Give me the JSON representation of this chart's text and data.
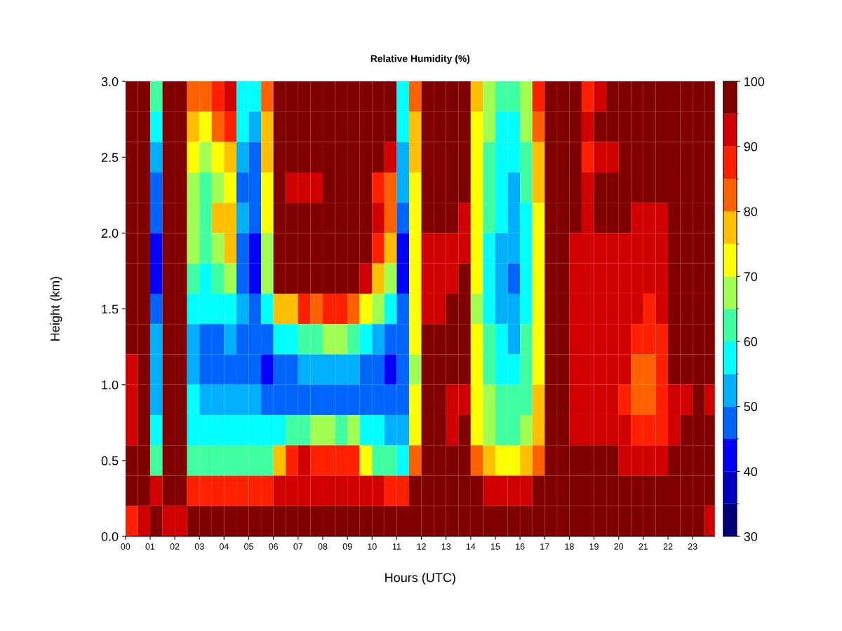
{
  "chart_data": {
    "type": "heatmap",
    "title": "Relative Humidity (%)",
    "xlabel": "Hours (UTC)",
    "ylabel": "Height (km)",
    "x": [
      0.25,
      0.75,
      1.25,
      1.75,
      2.25,
      2.75,
      3.25,
      3.75,
      4.25,
      4.75,
      5.25,
      5.75,
      6.25,
      6.75,
      7.25,
      7.75,
      8.25,
      8.75,
      9.25,
      9.75,
      10.25,
      10.75,
      11.25,
      11.75,
      12.25,
      12.75,
      13.25,
      13.75,
      14.25,
      14.75,
      15.25,
      15.75,
      16.25,
      16.75,
      17.25,
      17.75,
      18.25,
      18.75,
      19.25,
      19.75,
      20.25,
      20.75,
      21.25,
      21.75,
      22.25,
      22.75,
      23.25,
      23.75
    ],
    "cells": [
      [
        97,
        97,
        60,
        97,
        97,
        82,
        80,
        88,
        92,
        58,
        55,
        80,
        97,
        97,
        97,
        97,
        97,
        97,
        97,
        97,
        97,
        97,
        58,
        80,
        97,
        97,
        97,
        97,
        75,
        68,
        62,
        60,
        68,
        85,
        97,
        97,
        97,
        88,
        93,
        97,
        97,
        97,
        97,
        97,
        97,
        97,
        97,
        97
      ],
      [
        97,
        97,
        57,
        97,
        97,
        78,
        72,
        80,
        85,
        55,
        52,
        78,
        97,
        97,
        97,
        97,
        97,
        97,
        97,
        97,
        97,
        97,
        55,
        78,
        97,
        97,
        97,
        97,
        73,
        65,
        58,
        57,
        65,
        80,
        97,
        97,
        97,
        92,
        95,
        97,
        97,
        97,
        97,
        97,
        97,
        97,
        97,
        97
      ],
      [
        97,
        97,
        52,
        97,
        97,
        72,
        65,
        72,
        75,
        52,
        48,
        75,
        97,
        97,
        97,
        97,
        97,
        97,
        97,
        97,
        97,
        90,
        52,
        76,
        97,
        97,
        97,
        97,
        72,
        62,
        56,
        55,
        62,
        77,
        97,
        97,
        97,
        88,
        92,
        93,
        97,
        97,
        97,
        97,
        97,
        97,
        97,
        97
      ],
      [
        97,
        97,
        45,
        97,
        97,
        65,
        60,
        68,
        70,
        48,
        45,
        72,
        97,
        92,
        93,
        92,
        97,
        97,
        97,
        97,
        88,
        80,
        50,
        74,
        97,
        97,
        97,
        97,
        70,
        60,
        55,
        53,
        60,
        75,
        97,
        97,
        97,
        93,
        95,
        97,
        97,
        97,
        97,
        97,
        97,
        97,
        97,
        97
      ],
      [
        97,
        97,
        48,
        97,
        97,
        68,
        62,
        75,
        78,
        50,
        45,
        70,
        97,
        95,
        97,
        97,
        97,
        97,
        97,
        97,
        90,
        80,
        48,
        73,
        97,
        97,
        97,
        93,
        70,
        60,
        55,
        52,
        58,
        73,
        97,
        97,
        97,
        93,
        95,
        97,
        97,
        93,
        92,
        93,
        97,
        97,
        97,
        97
      ],
      [
        97,
        97,
        42,
        97,
        97,
        65,
        62,
        68,
        75,
        47,
        42,
        68,
        97,
        97,
        97,
        97,
        97,
        97,
        97,
        97,
        85,
        75,
        42,
        72,
        93,
        93,
        93,
        92,
        70,
        58,
        53,
        50,
        57,
        72,
        97,
        97,
        92,
        90,
        92,
        93,
        92,
        92,
        90,
        92,
        97,
        97,
        97,
        97
      ],
      [
        97,
        97,
        42,
        97,
        97,
        62,
        58,
        60,
        65,
        48,
        40,
        65,
        97,
        95,
        97,
        97,
        97,
        97,
        97,
        92,
        78,
        65,
        42,
        72,
        93,
        93,
        93,
        97,
        70,
        58,
        52,
        48,
        57,
        72,
        97,
        97,
        92,
        92,
        93,
        93,
        93,
        92,
        90,
        92,
        97,
        97,
        97,
        97
      ],
      [
        97,
        97,
        48,
        97,
        97,
        58,
        55,
        55,
        58,
        50,
        45,
        55,
        75,
        75,
        85,
        80,
        88,
        85,
        80,
        72,
        65,
        55,
        48,
        72,
        93,
        93,
        97,
        97,
        68,
        58,
        53,
        52,
        58,
        72,
        97,
        97,
        92,
        92,
        93,
        93,
        92,
        90,
        88,
        90,
        97,
        97,
        97,
        97
      ],
      [
        97,
        97,
        50,
        97,
        97,
        52,
        48,
        48,
        50,
        48,
        45,
        48,
        55,
        58,
        62,
        60,
        65,
        68,
        62,
        58,
        52,
        48,
        47,
        70,
        97,
        97,
        97,
        97,
        70,
        60,
        55,
        53,
        60,
        73,
        97,
        97,
        92,
        93,
        93,
        93,
        92,
        85,
        85,
        88,
        97,
        97,
        97,
        97
      ],
      [
        93,
        97,
        50,
        97,
        97,
        50,
        45,
        45,
        47,
        45,
        45,
        42,
        45,
        47,
        50,
        50,
        52,
        52,
        50,
        48,
        45,
        42,
        45,
        68,
        97,
        97,
        97,
        97,
        70,
        62,
        58,
        57,
        62,
        74,
        97,
        97,
        92,
        92,
        93,
        92,
        90,
        82,
        80,
        85,
        97,
        97,
        97,
        97
      ],
      [
        92,
        97,
        52,
        97,
        97,
        55,
        50,
        50,
        52,
        50,
        50,
        48,
        45,
        48,
        48,
        45,
        45,
        45,
        45,
        45,
        45,
        45,
        48,
        70,
        97,
        97,
        93,
        92,
        70,
        65,
        62,
        60,
        64,
        75,
        97,
        97,
        92,
        90,
        90,
        90,
        88,
        80,
        82,
        87,
        92,
        93,
        97,
        93
      ],
      [
        93,
        97,
        55,
        97,
        97,
        58,
        55,
        55,
        57,
        55,
        55,
        55,
        55,
        62,
        60,
        65,
        65,
        62,
        65,
        58,
        55,
        52,
        52,
        72,
        97,
        97,
        93,
        97,
        72,
        66,
        64,
        63,
        66,
        75,
        97,
        97,
        92,
        90,
        93,
        93,
        90,
        85,
        87,
        88,
        93,
        97,
        97,
        97
      ],
      [
        97,
        97,
        60,
        97,
        97,
        62,
        60,
        62,
        62,
        60,
        60,
        60,
        75,
        85,
        90,
        88,
        85,
        88,
        85,
        72,
        62,
        60,
        58,
        80,
        97,
        97,
        97,
        97,
        80,
        75,
        72,
        72,
        75,
        82,
        97,
        97,
        97,
        97,
        97,
        97,
        93,
        90,
        92,
        92,
        97,
        97,
        97,
        97
      ],
      [
        97,
        97,
        90,
        97,
        97,
        88,
        85,
        85,
        88,
        85,
        85,
        85,
        90,
        92,
        93,
        92,
        93,
        92,
        92,
        90,
        90,
        88,
        85,
        95,
        97,
        97,
        97,
        97,
        95,
        93,
        90,
        92,
        93,
        95,
        97,
        97,
        97,
        97,
        97,
        97,
        97,
        97,
        97,
        97,
        97,
        97,
        97,
        97
      ],
      [
        88,
        92,
        97,
        93,
        93,
        97,
        97,
        97,
        97,
        97,
        95,
        97,
        97,
        97,
        97,
        97,
        97,
        97,
        97,
        97,
        97,
        97,
        97,
        97,
        97,
        97,
        97,
        97,
        97,
        97,
        97,
        97,
        97,
        97,
        97,
        97,
        97,
        97,
        97,
        97,
        97,
        97,
        97,
        97,
        97,
        97,
        97,
        90
      ]
    ],
    "colors": [
      "#00007f",
      "#0000c0",
      "#0000ff",
      "#0064ff",
      "#00b0ff",
      "#00ffff",
      "#40ffa0",
      "#a0ff50",
      "#ffff00",
      "#ffbf00",
      "#ff6000",
      "#ff2000",
      "#d00000",
      "#800000"
    ],
    "clim": [
      30,
      100
    ],
    "cticks": [
      30,
      40,
      50,
      60,
      70,
      80,
      90,
      100
    ],
    "xticks": [
      {
        "value": 0,
        "label": "00"
      },
      {
        "value": 1,
        "label": "01"
      },
      {
        "value": 2,
        "label": "02"
      },
      {
        "value": 3,
        "label": "03"
      },
      {
        "value": 4,
        "label": "04"
      },
      {
        "value": 5,
        "label": "05"
      },
      {
        "value": 6,
        "label": "06"
      },
      {
        "value": 7,
        "label": "07"
      },
      {
        "value": 8,
        "label": "08"
      },
      {
        "value": 9,
        "label": "09"
      },
      {
        "value": 10,
        "label": "10"
      },
      {
        "value": 11,
        "label": "11"
      },
      {
        "value": 12,
        "label": "12"
      },
      {
        "value": 13,
        "label": "13"
      },
      {
        "value": 14,
        "label": "14"
      },
      {
        "value": 15,
        "label": "15"
      },
      {
        "value": 16,
        "label": "16"
      },
      {
        "value": 17,
        "label": "17"
      },
      {
        "value": 18,
        "label": "18"
      },
      {
        "value": 19,
        "label": "19"
      },
      {
        "value": 20,
        "label": "20"
      },
      {
        "value": 21,
        "label": "21"
      },
      {
        "value": 22,
        "label": "22"
      },
      {
        "value": 23,
        "label": "23"
      }
    ],
    "xlim": [
      0,
      23.9
    ],
    "ylim": [
      0,
      3
    ],
    "yticks": [
      {
        "value": 0,
        "label": "0.0"
      },
      {
        "value": 0.5,
        "label": "0.5"
      },
      {
        "value": 1,
        "label": "1.0"
      },
      {
        "value": 1.5,
        "label": "1.5"
      },
      {
        "value": 2,
        "label": "2.0"
      },
      {
        "value": 2.5,
        "label": "2.5"
      },
      {
        "value": 3,
        "label": "3.0"
      }
    ],
    "grid": false
  }
}
